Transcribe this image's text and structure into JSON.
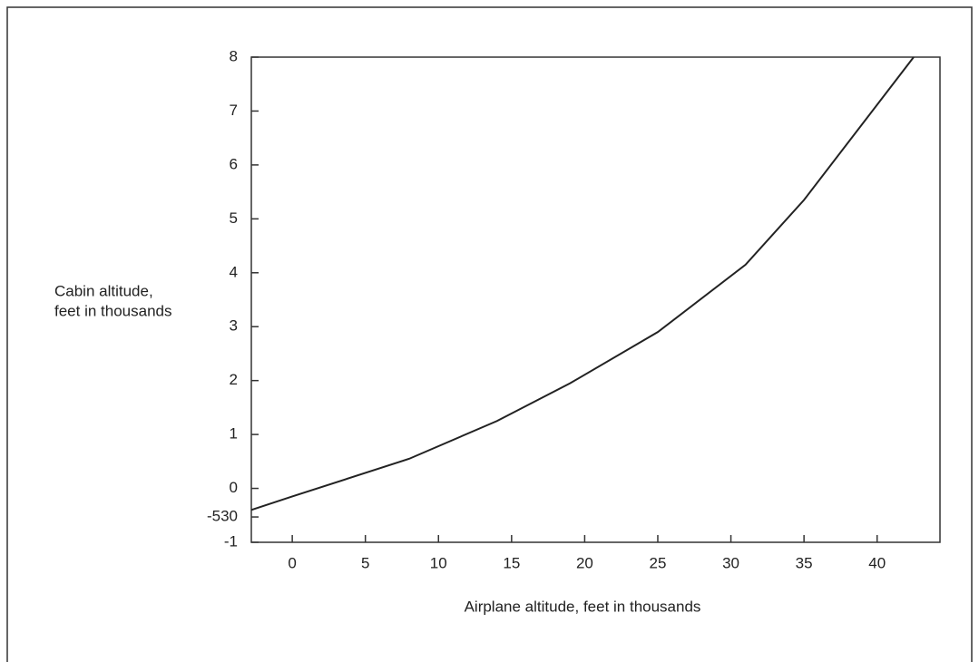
{
  "chart_data": {
    "type": "line",
    "xlabel": "Airplane altitude, feet in thousands",
    "ylabel": [
      "Cabin altitude,",
      "feet in thousands"
    ],
    "xlim": [
      -2.8,
      44.3
    ],
    "ylim": [
      -1,
      8
    ],
    "xticks": [
      0,
      5,
      10,
      15,
      20,
      25,
      30,
      35,
      40
    ],
    "yticks": [
      -1,
      {
        "value": -0.53,
        "label": "-530"
      },
      0,
      1,
      2,
      3,
      4,
      5,
      6,
      7,
      8
    ],
    "grid": false,
    "series": [
      {
        "color": "#222222",
        "x": [
          -2.8,
          0,
          8,
          14,
          19,
          25,
          31,
          35,
          42.5
        ],
        "values": [
          -0.4,
          -0.15,
          0.55,
          1.25,
          1.95,
          2.9,
          4.15,
          5.35,
          8
        ]
      }
    ]
  }
}
